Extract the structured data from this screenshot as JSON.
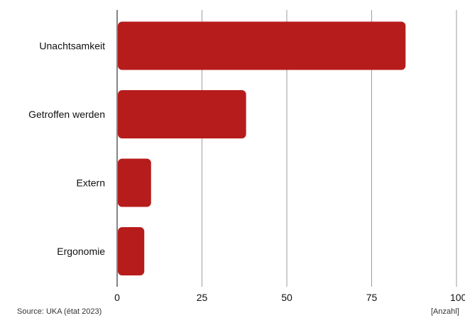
{
  "chart_data": {
    "type": "bar",
    "orientation": "horizontal",
    "categories": [
      "Unachtsamkeit",
      "Getroffen werden",
      "Extern",
      "Ergonomie"
    ],
    "values": [
      85,
      38,
      10,
      8
    ],
    "xlim": [
      0,
      100
    ],
    "xticks": [
      0,
      25,
      50,
      75,
      100
    ],
    "grid": true,
    "unit_label": "[Anzahl]",
    "bar_color": "#b71c1c"
  },
  "footer": {
    "source": "Source: UKA (état 2023)"
  }
}
